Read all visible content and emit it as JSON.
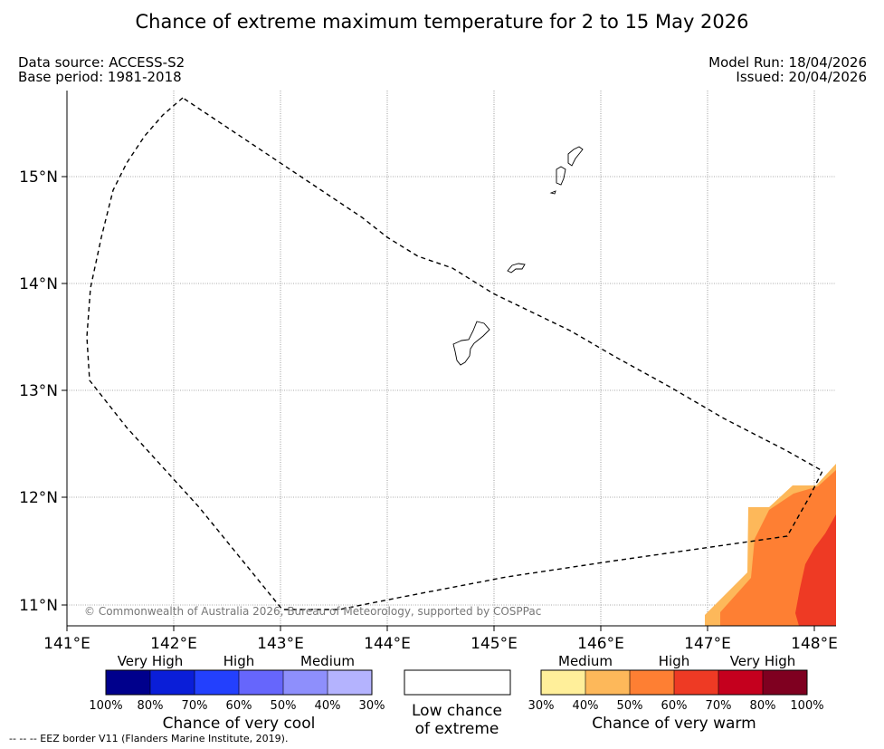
{
  "title": "Chance of extreme maximum temperature for 2 to 15 May 2026",
  "meta": {
    "data_source": "Data source: ACCESS-S2",
    "base_period": "Base period: 1981-2018",
    "model_run": "Model Run: 18/04/2026",
    "issued": "Issued: 20/04/2026"
  },
  "map": {
    "lat_ticks": [
      "15°N",
      "14°N",
      "13°N",
      "12°N",
      "11°N"
    ],
    "lon_ticks": [
      "141°E",
      "142°E",
      "143°E",
      "144°E",
      "145°E",
      "146°E",
      "147°E",
      "148°E"
    ],
    "copyright": "© Commonwealth of Australia 2026, Bureau of Meteorology, supported by COSPPac",
    "colors": {
      "very_warm_40_50": "#fdb85a",
      "very_warm_50_60": "#fe7f33",
      "very_warm_60_70": "#ee3a24"
    }
  },
  "legend": {
    "cool": {
      "group_labels": [
        "Very High",
        "High",
        "Medium"
      ],
      "colors": [
        "#00008c",
        "#0a1ed8",
        "#2340fd",
        "#6666fc",
        "#8e8ffc",
        "#b4b3fe"
      ],
      "ticks": [
        "100%",
        "80%",
        "70%",
        "60%",
        "50%",
        "40%",
        "30%"
      ],
      "title": "Chance of very cool"
    },
    "low": {
      "line1": "Low chance",
      "line2": "of extreme"
    },
    "warm": {
      "group_labels": [
        "Medium",
        "High",
        "Very High"
      ],
      "colors": [
        "#ffef9a",
        "#fdb85a",
        "#fe7f33",
        "#ee3a24",
        "#c5001e",
        "#7f0020"
      ],
      "ticks": [
        "30%",
        "40%",
        "50%",
        "60%",
        "70%",
        "80%",
        "100%"
      ],
      "title": "Chance of very warm"
    }
  },
  "footnote": "--  --  -- EEZ border V11 (Flanders Marine Institute, 2019)."
}
